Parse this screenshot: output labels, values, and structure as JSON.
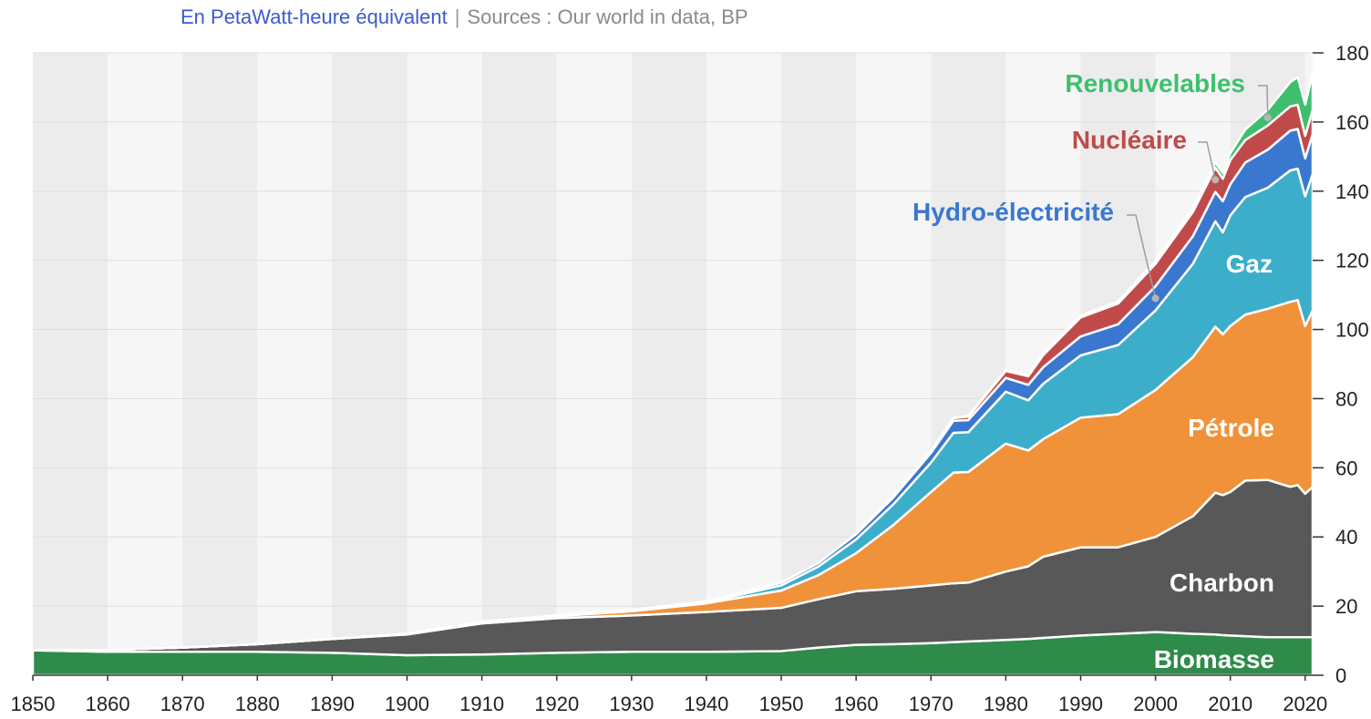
{
  "header": {
    "unit": "En PetaWatt-heure équivalent",
    "separator": "|",
    "sources": "Sources : Our world in data, BP"
  },
  "colors": {
    "Biomasse": "#2e8b4a",
    "Charbon": "#585858",
    "Pétrole": "#f0923a",
    "Gaz": "#3caec9",
    "Hydro-électricité": "#3a78cf",
    "Nucléaire": "#c04a4a",
    "Renouvelables": "#3fbf6e",
    "background_dark": "#ececec",
    "background_light": "#f6f6f6"
  },
  "chart_data": {
    "type": "area",
    "stacked": true,
    "title": "",
    "xlabel": "",
    "ylabel": "PetaWatt-heure",
    "xlim": [
      1850,
      2021
    ],
    "ylim": [
      0,
      180
    ],
    "x_ticks": [
      1850,
      1860,
      1870,
      1880,
      1890,
      1900,
      1910,
      1920,
      1930,
      1940,
      1950,
      1960,
      1970,
      1980,
      1990,
      2000,
      2010,
      2020
    ],
    "y_ticks": [
      0,
      20,
      40,
      60,
      80,
      100,
      120,
      140,
      160,
      180
    ],
    "x": [
      1850,
      1860,
      1870,
      1880,
      1890,
      1900,
      1910,
      1920,
      1930,
      1940,
      1950,
      1955,
      1960,
      1965,
      1970,
      1973,
      1975,
      1980,
      1983,
      1985,
      1990,
      1995,
      2000,
      2005,
      2008,
      2009,
      2010,
      2012,
      2015,
      2018,
      2019,
      2020,
      2021
    ],
    "series": [
      {
        "name": "Biomasse",
        "values": [
          7.2,
          6.8,
          6.8,
          6.8,
          6.5,
          5.8,
          6.0,
          6.5,
          6.8,
          6.8,
          7.0,
          8.0,
          8.8,
          9.0,
          9.3,
          9.6,
          9.8,
          10.2,
          10.5,
          10.8,
          11.5,
          12.0,
          12.5,
          12.0,
          11.8,
          11.6,
          11.5,
          11.3,
          11.0,
          11.0,
          11.0,
          11.0,
          11.0
        ]
      },
      {
        "name": "Charbon",
        "values": [
          0,
          0.5,
          1.2,
          2.2,
          4.0,
          6.0,
          9.0,
          10.0,
          10.5,
          11.5,
          12.5,
          14.0,
          15.5,
          16.0,
          16.7,
          17.0,
          17.0,
          19.8,
          21.0,
          23.5,
          25.5,
          25.0,
          27.5,
          34.0,
          41.0,
          40.5,
          41.5,
          45.0,
          45.5,
          43.5,
          44.0,
          41.5,
          43.5
        ]
      },
      {
        "name": "Pétrole",
        "values": [
          0,
          0,
          0,
          0,
          0,
          0.2,
          0.4,
          0.6,
          1.2,
          2.5,
          5.0,
          7.0,
          11.0,
          18.5,
          27.0,
          32.0,
          32.0,
          37.0,
          33.5,
          34.0,
          37.5,
          38.5,
          42.5,
          46.0,
          48.0,
          46.5,
          48.0,
          48.0,
          49.5,
          53.5,
          53.5,
          48.5,
          51.0
        ]
      },
      {
        "name": "Gaz",
        "values": [
          0,
          0,
          0,
          0,
          0,
          0,
          0.1,
          0.1,
          0.2,
          0.3,
          1.5,
          2.5,
          4.0,
          6.0,
          8.5,
          11.5,
          11.5,
          15.0,
          14.5,
          16.0,
          18.0,
          20.0,
          23.0,
          27.0,
          30.5,
          29.5,
          32.0,
          34.0,
          35.0,
          38.0,
          38.0,
          37.5,
          39.5
        ]
      },
      {
        "name": "Hydro-électricité",
        "values": [
          0,
          0,
          0,
          0,
          0,
          0,
          0,
          0.1,
          0.2,
          0.3,
          0.8,
          1.0,
          1.5,
          2.0,
          2.8,
          3.5,
          3.5,
          4.0,
          4.5,
          4.8,
          5.5,
          6.0,
          7.0,
          8.0,
          8.5,
          9.0,
          9.0,
          10.0,
          11.0,
          11.5,
          11.5,
          11.0,
          11.5
        ]
      },
      {
        "name": "Nucléaire",
        "values": [
          0,
          0,
          0,
          0,
          0,
          0,
          0,
          0,
          0,
          0,
          0,
          0,
          0.1,
          0.2,
          0.5,
          0.8,
          1.0,
          2.0,
          2.5,
          3.5,
          5.5,
          6.0,
          6.5,
          7.0,
          7.0,
          6.5,
          7.0,
          6.5,
          7.0,
          7.0,
          7.0,
          6.5,
          7.0
        ]
      },
      {
        "name": "Renouvelables",
        "values": [
          0,
          0,
          0,
          0,
          0,
          0,
          0,
          0,
          0,
          0,
          0,
          0,
          0,
          0,
          0,
          0.1,
          0.2,
          0.3,
          0.3,
          0.4,
          0.5,
          0.6,
          0.8,
          1.2,
          1.5,
          1.7,
          2.0,
          3.0,
          4.5,
          7.0,
          8.0,
          9.0,
          10.5
        ]
      }
    ],
    "labels": {
      "Biomasse": "Biomasse",
      "Charbon": "Charbon",
      "Pétrole": "Pétrole",
      "Gaz": "Gaz",
      "Hydro-électricité": "Hydro-électricité",
      "Nucléaire": "Nucléaire",
      "Renouvelables": "Renouvelables"
    }
  }
}
